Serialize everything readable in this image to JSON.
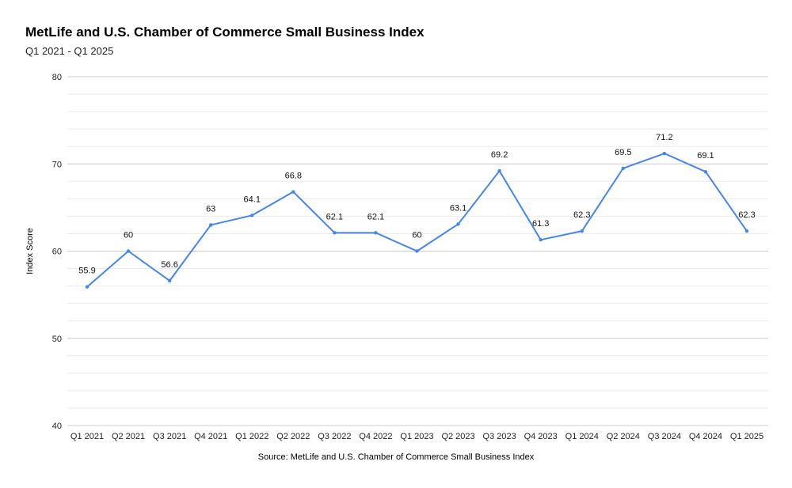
{
  "header": {
    "title": "MetLife and U.S. Chamber of Commerce Small Business Index",
    "subtitle": "Q1 2021 - Q1 2025"
  },
  "footer": {
    "source": "Source: MetLife and U.S. Chamber of Commerce Small Business Index"
  },
  "chart_data": {
    "type": "line",
    "title": "MetLife and U.S. Chamber of Commerce Small Business Index",
    "subtitle": "Q1 2021 - Q1 2025",
    "xlabel": "",
    "ylabel": "Index Score",
    "ylim": [
      40,
      80
    ],
    "yticks": [
      40,
      50,
      60,
      70,
      80
    ],
    "minor_grid_step": 2,
    "grid": true,
    "legend": "none",
    "line_color": "#4285f4",
    "categories": [
      "Q1 2021",
      "Q2 2021",
      "Q3 2021",
      "Q4 2021",
      "Q1 2022",
      "Q2 2022",
      "Q3 2022",
      "Q4 2022",
      "Q1 2023",
      "Q2 2023",
      "Q3 2023",
      "Q4 2023",
      "Q1 2024",
      "Q2 2024",
      "Q3 2024",
      "Q4 2024",
      "Q1 2025"
    ],
    "series": [
      {
        "values": [
          55.9,
          60,
          56.6,
          63,
          64.1,
          66.8,
          62.1,
          62.1,
          60,
          63.1,
          69.2,
          61.3,
          62.3,
          69.5,
          71.2,
          69.1,
          62.3
        ],
        "labels": [
          "55.9",
          "60",
          "56.6",
          "63",
          "64.1",
          "66.8",
          "62.1",
          "62.1",
          "60",
          "63.1",
          "69.2",
          "61.3",
          "62.3",
          "69.5",
          "71.2",
          "69.1",
          "62.3"
        ]
      }
    ]
  }
}
